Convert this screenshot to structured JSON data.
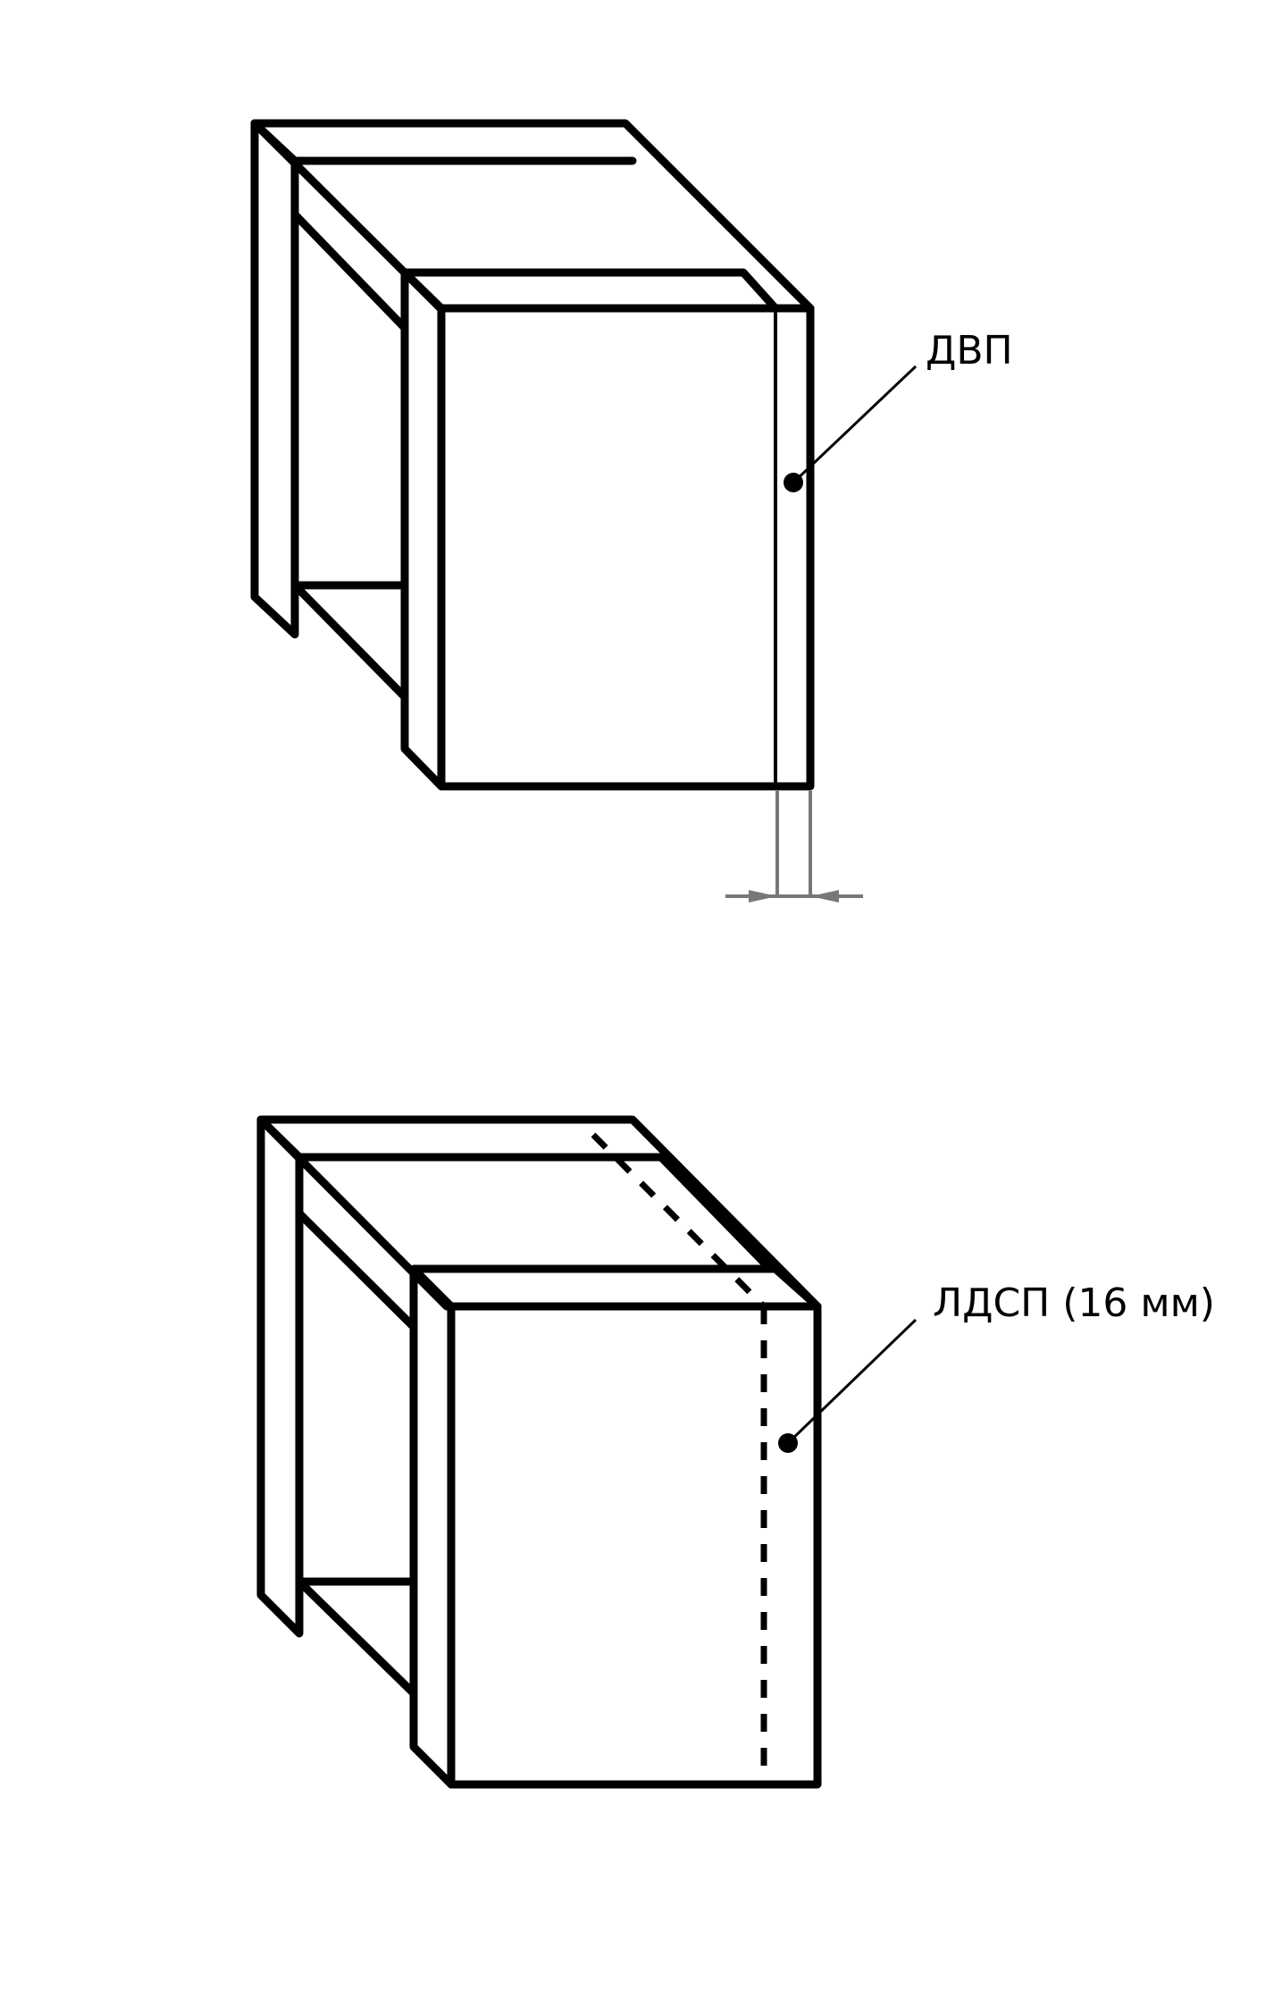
{
  "callouts": {
    "top_label": "ДВП",
    "bottom_label": "ЛДСП (16 мм)"
  },
  "colors": {
    "line": "#000000",
    "dimension": "#777777",
    "background": "#ffffff"
  }
}
